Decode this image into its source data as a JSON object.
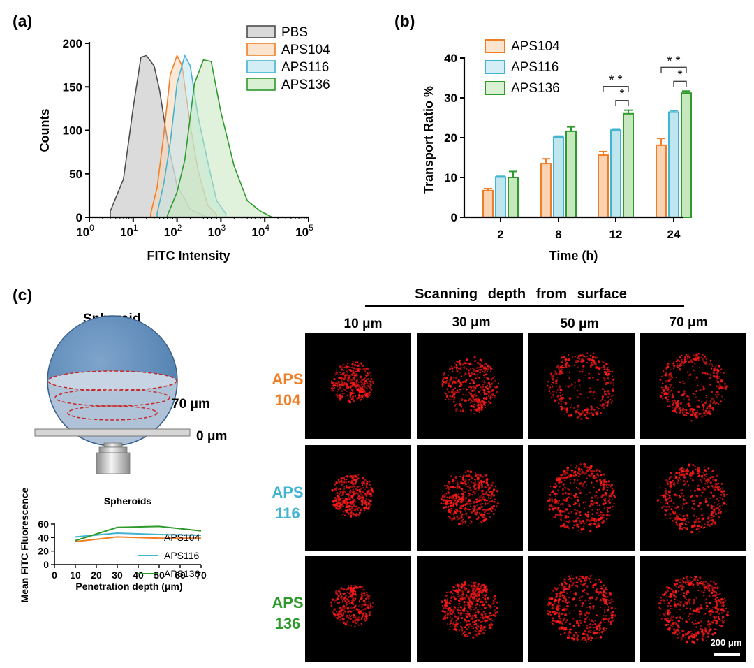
{
  "panels": {
    "a": "(a)",
    "b": "(b)",
    "c": "(c)"
  },
  "colors": {
    "PBS": "#4d4d4d",
    "APS104": "#f07e26",
    "APS116": "#43b4d0",
    "APS136": "#2f9a2c",
    "signal": "#ff1a1a"
  },
  "chart_data": [
    {
      "type": "area",
      "panel": "a",
      "xlabel": "FITC Intensity",
      "ylabel": "Counts",
      "xscale": "log",
      "xlim": [
        1,
        100000
      ],
      "ylim": [
        0,
        200
      ],
      "x_ticks": [
        "0",
        "1",
        "2",
        "3",
        "4",
        "5"
      ],
      "x_tick_base": "10",
      "y_ticks": [
        "0",
        "50",
        "100",
        "150",
        "200"
      ],
      "legend_placement": "top-right",
      "series": [
        {
          "name": "PBS",
          "color": "#4d4d4d",
          "x": [
            3,
            6,
            10,
            15,
            20,
            30,
            40,
            60,
            100,
            150,
            200,
            300,
            500
          ],
          "values": [
            8,
            40,
            130,
            180,
            190,
            170,
            150,
            85,
            40,
            20,
            10,
            4,
            1
          ]
        },
        {
          "name": "APS104",
          "color": "#f07e26",
          "x": [
            25,
            35,
            50,
            70,
            100,
            130,
            200,
            300,
            500,
            800
          ],
          "values": [
            5,
            30,
            100,
            160,
            190,
            170,
            110,
            50,
            15,
            2
          ]
        },
        {
          "name": "APS116",
          "color": "#43b4d0",
          "x": [
            35,
            50,
            70,
            100,
            150,
            200,
            300,
            500,
            800,
            1300
          ],
          "values": [
            5,
            35,
            90,
            150,
            190,
            170,
            120,
            60,
            20,
            3
          ]
        },
        {
          "name": "APS136",
          "color": "#2f9a2c",
          "x": [
            60,
            100,
            150,
            250,
            400,
            600,
            1000,
            2000,
            4000,
            8000,
            15000
          ],
          "values": [
            3,
            25,
            70,
            150,
            185,
            175,
            125,
            55,
            20,
            6,
            1
          ]
        }
      ]
    },
    {
      "type": "bar",
      "panel": "b",
      "xlabel": "Time (h)",
      "ylabel": "Transport Ratio %",
      "categories": [
        "2",
        "8",
        "12",
        "24"
      ],
      "ylim": [
        0,
        40
      ],
      "y_ticks": [
        "0",
        "10",
        "20",
        "30",
        "40"
      ],
      "legend_placement": "top-left",
      "series": [
        {
          "name": "APS104",
          "color": "#f07e26",
          "values": [
            6.7,
            13.5,
            15.6,
            18.1
          ],
          "errors": [
            0.5,
            1.2,
            0.9,
            1.7
          ]
        },
        {
          "name": "APS116",
          "color": "#43b4d0",
          "values": [
            10.1,
            20.1,
            21.9,
            26.4
          ],
          "errors": [
            0.2,
            0.3,
            0.3,
            0.4
          ]
        },
        {
          "name": "APS136",
          "color": "#2f9a2c",
          "values": [
            10.0,
            21.6,
            26.0,
            31.2
          ],
          "errors": [
            1.5,
            1.1,
            0.9,
            0.5
          ]
        }
      ],
      "significance": [
        {
          "category": "12",
          "from": "APS104",
          "to": "APS136",
          "label": "* *"
        },
        {
          "category": "12",
          "from": "APS116",
          "to": "APS136",
          "label": "*"
        },
        {
          "category": "24",
          "from": "APS104",
          "to": "APS136",
          "label": "* *"
        },
        {
          "category": "24",
          "from": "APS116",
          "to": "APS136",
          "label": "*"
        }
      ]
    },
    {
      "type": "line",
      "panel": "c",
      "title": "Spheroids",
      "xlabel": "Penetration depth (μm)",
      "ylabel": "Mean FITC Fluorescence",
      "x": [
        10,
        30,
        50,
        70
      ],
      "xlim": [
        0,
        70
      ],
      "ylim": [
        0,
        60
      ],
      "x_ticks": [
        "0",
        "10",
        "20",
        "30",
        "40",
        "50",
        "60",
        "70"
      ],
      "y_ticks": [
        "0",
        "20",
        "40",
        "60"
      ],
      "legend_placement": "bottom-right",
      "series": [
        {
          "name": "APS104",
          "color": "#f07e26",
          "values": [
            34,
            41,
            39,
            39
          ]
        },
        {
          "name": "APS116",
          "color": "#43b4d0",
          "values": [
            41,
            46.5,
            44.5,
            43.5
          ]
        },
        {
          "name": "APS136",
          "color": "#2f9a2c",
          "values": [
            35.5,
            55,
            56.5,
            50
          ]
        }
      ]
    }
  ],
  "schematic": {
    "label": "Spheroid",
    "depth_top": "70 μm",
    "depth_bottom": "0 μm"
  },
  "microscopy": {
    "header": "Scanning depth from surface",
    "depths": [
      "10 μm",
      "30 μm",
      "50 μm",
      "70 μm"
    ],
    "rows": [
      {
        "label_line1": "APS",
        "label_line2": "104",
        "color": "#f07e26",
        "intensity": [
          0.45,
          0.6,
          0.55,
          0.65
        ]
      },
      {
        "label_line1": "APS",
        "label_line2": "116",
        "color": "#43b4d0",
        "intensity": [
          0.55,
          0.85,
          0.9,
          0.85
        ]
      },
      {
        "label_line1": "APS",
        "label_line2": "136",
        "color": "#2f9a2c",
        "intensity": [
          0.35,
          1.0,
          1.0,
          1.0
        ]
      }
    ],
    "scale_bar": "200 μm"
  }
}
